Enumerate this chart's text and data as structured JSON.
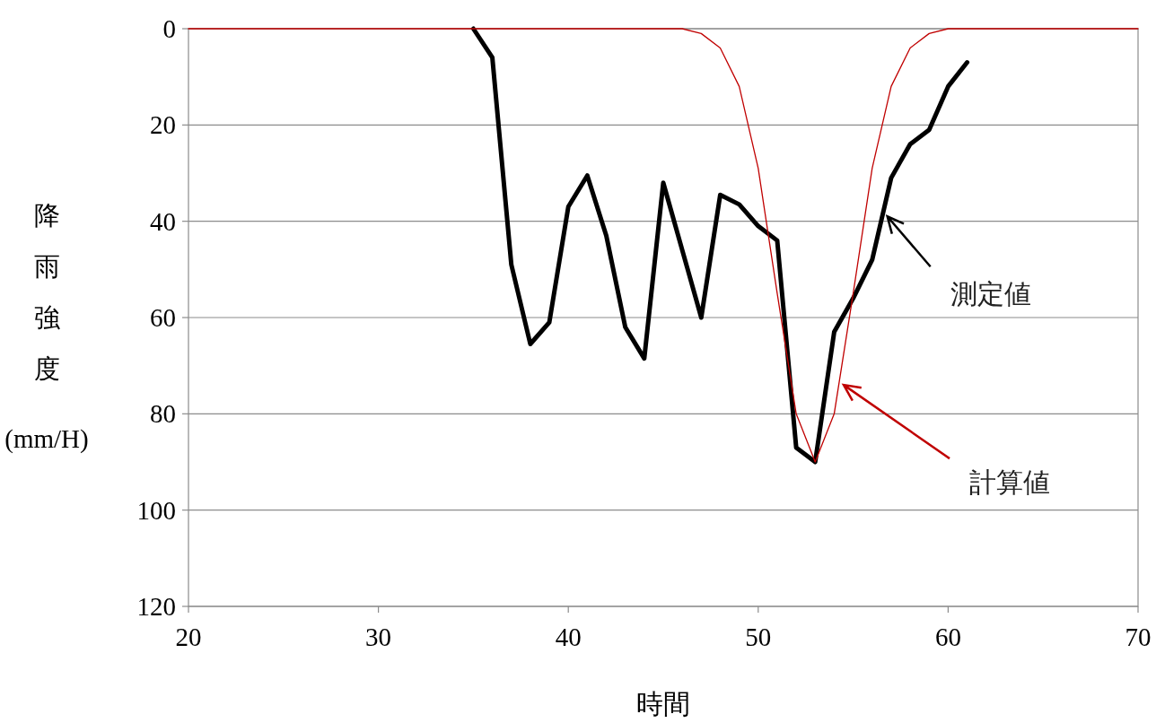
{
  "chart_data": {
    "type": "line",
    "xlabel": "時間",
    "ylabel": "降雨強度(mm/H)",
    "xlim": [
      20,
      70
    ],
    "xticks": [
      20,
      30,
      40,
      50,
      60,
      70
    ],
    "ylim": [
      120,
      0
    ],
    "yticks": [
      0,
      20,
      40,
      60,
      80,
      100,
      120
    ],
    "grid": "y",
    "series": [
      {
        "color": "#000000",
        "x": [
          35,
          36,
          37,
          38,
          39,
          40,
          41,
          42,
          43,
          44,
          45,
          46,
          47,
          48,
          49,
          50,
          51,
          52,
          53,
          54,
          55,
          56,
          57,
          58,
          59,
          60,
          61
        ],
        "values": [
          0,
          6,
          49,
          65.5,
          61,
          37,
          30.5,
          43,
          62,
          68.5,
          32,
          46,
          60,
          34.5,
          36.5,
          41,
          44,
          87,
          90,
          63,
          56,
          48,
          31,
          24,
          21,
          12,
          7
        ]
      },
      {
        "color": "#c00000",
        "x": [
          20,
          21,
          22,
          23,
          24,
          25,
          26,
          27,
          28,
          29,
          30,
          31,
          32,
          33,
          34,
          35,
          36,
          37,
          38,
          39,
          40,
          41,
          42,
          43,
          44,
          45,
          46,
          47,
          48,
          49,
          50,
          51,
          52,
          53,
          54,
          55,
          56,
          57,
          58,
          59,
          60,
          61,
          62,
          63,
          64,
          65,
          66,
          67,
          68,
          69,
          70
        ],
        "values": [
          0,
          0,
          0,
          0,
          0,
          0,
          0,
          0,
          0,
          0,
          0,
          0,
          0,
          0,
          0,
          0,
          0,
          0,
          0,
          0,
          0,
          0,
          0,
          0,
          0,
          0,
          0,
          1,
          4,
          12,
          29,
          55,
          80,
          90,
          80,
          55,
          29,
          12,
          4,
          1,
          0,
          0,
          0,
          0,
          0,
          0,
          0,
          0,
          0,
          0,
          0
        ]
      }
    ],
    "annotations": [
      {
        "text": "測定値",
        "x": 56.8,
        "y": 39
      },
      {
        "text": "計算値",
        "x": 54.5,
        "y": 74
      }
    ]
  }
}
